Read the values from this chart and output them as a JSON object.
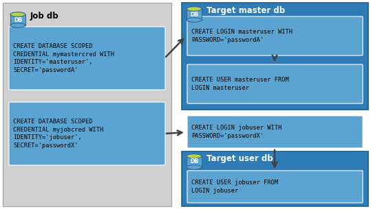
{
  "bg_color": "#ffffff",
  "left_panel_bg": "#d0d0d0",
  "right_top_panel_bg": "#2e7bb5",
  "right_bottom_panel_bg": "#2e7bb5",
  "inner_box_color": "#5ba3d0",
  "db_icon_body": "#5ba3d0",
  "db_icon_top": "#b5d44a",
  "arrow_color": "#404040",
  "text_color": "#000000",
  "title_color": "#000000",
  "left_title": "Job db",
  "right_top_title": "Target master db",
  "right_bottom_title": "Target user db",
  "box1_text": "CREATE DATABASE SCOPED\nCREDENTIAL mymastercred WITH\nIDENTITY='masteruser',\nSECRET='passwordA'",
  "box2_text": "CREATE DATABASE SCOPED\nCREDENTIAL myjobcred WITH\nIDENTITY='jobuser',\nSECRET='passwordX'",
  "box3_text": "CREATE LOGIN masteruser WITH\nPASSWORD='passwordA'",
  "box4_text": "CREATE USER masteruser FROM\nLOGIN masteruser",
  "box5_text": "CREATE LOGIN jobuser WITH\nPASSWORD='passwordX'",
  "box6_text": "CREATE USER jobuser FROM\nLOGIN jobuser"
}
